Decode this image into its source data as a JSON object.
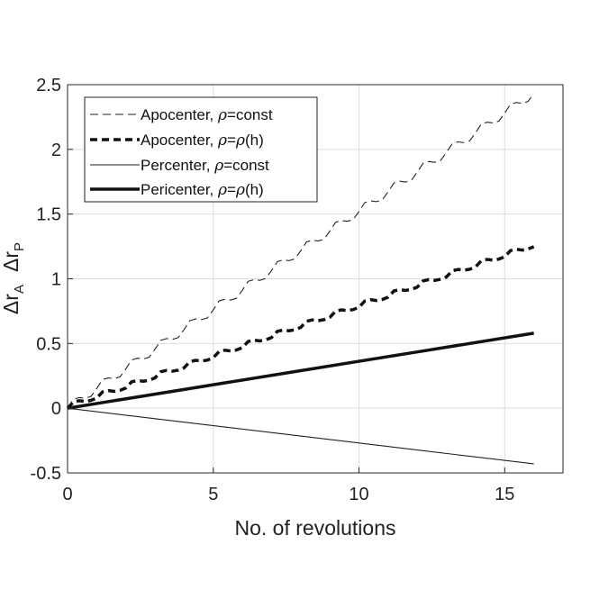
{
  "chart_data": {
    "type": "line",
    "title": "",
    "xlabel": "No. of revolutions",
    "ylabel_parts": {
      "mark1": "Δ",
      "symbol1": "r",
      "sub1": "A",
      "mark2": "Δ",
      "symbol2": "r",
      "sub2": "P"
    },
    "xlim": [
      0,
      17
    ],
    "ylim": [
      -0.5,
      2.5
    ],
    "xticks": [
      0,
      5,
      10,
      15
    ],
    "xtick_labels": [
      "0",
      "5",
      "10",
      "15"
    ],
    "yticks": [
      -0.5,
      0,
      0.5,
      1,
      1.5,
      2,
      2.5
    ],
    "ytick_labels": [
      "-0.5",
      "0",
      "0.5",
      "1",
      "1.5",
      "2",
      "2.5"
    ],
    "grid": true,
    "legend_position": "top-left",
    "series": [
      {
        "name": "Apocenter, ρ=const",
        "label_prefix": "Apocenter, ",
        "label_rho": "ρ",
        "label_suffix": "=const",
        "style": "dashed",
        "width": "thin",
        "x": [
          0,
          0.2,
          0.4,
          0.6,
          0.8,
          1.0,
          1.2,
          1.4,
          1.6,
          1.8,
          2.0,
          2.2,
          2.4,
          2.6,
          2.8,
          3.0,
          3.2,
          3.4,
          3.6,
          3.8,
          4.0,
          4.2,
          4.4,
          4.6,
          4.8,
          5.0,
          5.2,
          5.4,
          5.6,
          5.8,
          6.0,
          6.2,
          6.4,
          6.6,
          6.8,
          7.0,
          7.2,
          7.4,
          7.6,
          7.8,
          8.0,
          8.2,
          8.4,
          8.6,
          8.8,
          9.0,
          9.2,
          9.4,
          9.6,
          9.8,
          10.0,
          10.2,
          10.4,
          10.6,
          10.8,
          11.0,
          11.2,
          11.4,
          11.6,
          11.8,
          12.0,
          12.2,
          12.4,
          12.6,
          12.8,
          13.0,
          13.2,
          13.4,
          13.6,
          13.8,
          14.0,
          14.2,
          14.4,
          14.6,
          14.8,
          15.0,
          15.2,
          15.4,
          15.6,
          15.8,
          16.0
        ],
        "y": [
          0,
          0.069,
          0.082,
          0.076,
          0.09,
          0.152,
          0.221,
          0.234,
          0.228,
          0.242,
          0.304,
          0.373,
          0.386,
          0.38,
          0.394,
          0.456,
          0.525,
          0.538,
          0.532,
          0.546,
          0.608,
          0.677,
          0.69,
          0.684,
          0.698,
          0.76,
          0.829,
          0.842,
          0.836,
          0.85,
          0.912,
          0.981,
          0.994,
          0.988,
          1.002,
          1.064,
          1.133,
          1.146,
          1.14,
          1.154,
          1.216,
          1.285,
          1.298,
          1.292,
          1.306,
          1.368,
          1.437,
          1.45,
          1.444,
          1.458,
          1.52,
          1.589,
          1.602,
          1.596,
          1.61,
          1.672,
          1.741,
          1.754,
          1.748,
          1.762,
          1.824,
          1.893,
          1.906,
          1.9,
          1.914,
          1.976,
          2.045,
          2.058,
          2.052,
          2.066,
          2.128,
          2.197,
          2.21,
          2.204,
          2.218,
          2.28,
          2.349,
          2.362,
          2.356,
          2.37,
          2.432
        ]
      },
      {
        "name": "Apocenter, ρ=ρ(h)",
        "label_prefix": "Apocenter, ",
        "label_rho": "ρ",
        "label_suffix": "=",
        "label_rho2": "ρ",
        "label_tail": "(h)",
        "style": "dashed",
        "width": "thick",
        "x": [
          0,
          0.2,
          0.4,
          0.6,
          0.8,
          1.0,
          1.2,
          1.4,
          1.6,
          1.8,
          2.0,
          2.2,
          2.4,
          2.6,
          2.8,
          3.0,
          3.2,
          3.4,
          3.6,
          3.8,
          4.0,
          4.2,
          4.4,
          4.6,
          4.8,
          5.0,
          5.2,
          5.4,
          5.6,
          5.8,
          6.0,
          6.2,
          6.4,
          6.6,
          6.8,
          7.0,
          7.2,
          7.4,
          7.6,
          7.8,
          8.0,
          8.2,
          8.4,
          8.6,
          8.8,
          9.0,
          9.2,
          9.4,
          9.6,
          9.8,
          10.0,
          10.2,
          10.4,
          10.6,
          10.8,
          11.0,
          11.2,
          11.4,
          11.6,
          11.8,
          12.0,
          12.2,
          12.4,
          12.6,
          12.8,
          13.0,
          13.2,
          13.4,
          13.6,
          13.8,
          14.0,
          14.2,
          14.4,
          14.6,
          14.8,
          15.0,
          15.2,
          15.4,
          15.6,
          15.8,
          16.0
        ],
        "y": [
          0,
          0.048,
          0.058,
          0.052,
          0.06,
          0.078,
          0.126,
          0.136,
          0.13,
          0.138,
          0.156,
          0.204,
          0.214,
          0.208,
          0.216,
          0.234,
          0.282,
          0.292,
          0.286,
          0.294,
          0.312,
          0.36,
          0.37,
          0.364,
          0.372,
          0.39,
          0.438,
          0.448,
          0.442,
          0.45,
          0.468,
          0.516,
          0.526,
          0.52,
          0.528,
          0.546,
          0.594,
          0.604,
          0.598,
          0.606,
          0.624,
          0.672,
          0.682,
          0.676,
          0.684,
          0.702,
          0.75,
          0.76,
          0.754,
          0.762,
          0.78,
          0.828,
          0.838,
          0.832,
          0.84,
          0.858,
          0.906,
          0.916,
          0.91,
          0.918,
          0.936,
          0.984,
          0.994,
          0.988,
          0.996,
          1.014,
          1.062,
          1.072,
          1.066,
          1.074,
          1.092,
          1.14,
          1.15,
          1.144,
          1.152,
          1.17,
          1.218,
          1.228,
          1.222,
          1.23,
          1.248
        ]
      },
      {
        "name": "Percenter, ρ=const",
        "label_prefix": "Percenter, ",
        "label_rho": "ρ",
        "label_suffix": "=const",
        "style": "solid",
        "width": "thin",
        "x": [
          0,
          4,
          8,
          12,
          16
        ],
        "y": [
          0,
          -0.108,
          -0.215,
          -0.323,
          -0.43
        ]
      },
      {
        "name": "Pericenter, ρ=ρ(h)",
        "label_prefix": "Pericenter, ",
        "label_rho": "ρ",
        "label_suffix": "=",
        "label_rho2": "ρ",
        "label_tail": "(h)",
        "style": "solid",
        "width": "thick",
        "x": [
          0,
          4,
          8,
          12,
          16
        ],
        "y": [
          0,
          0.145,
          0.29,
          0.435,
          0.58
        ]
      }
    ]
  }
}
